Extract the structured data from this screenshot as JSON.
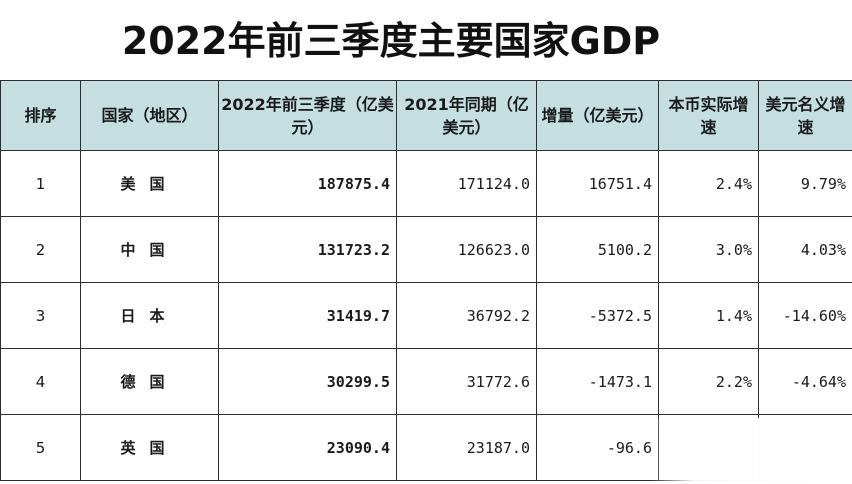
{
  "title": "2022年前三季度主要国家GDP",
  "headers": {
    "rank": "排序",
    "country": "国家（地区）",
    "gdp2022": "2022年前三季度（亿美元）",
    "gdp2021": "2021年同期（亿美元）",
    "increase": "增量（亿美元）",
    "local_growth": "本币实际增速",
    "usd_growth": "美元名义增速"
  },
  "rows": [
    {
      "rank": "1",
      "country": "美国",
      "gdp2022": "187875.4",
      "gdp2021": "171124.0",
      "increase": "16751.4",
      "local_growth": "2.4%",
      "usd_growth": "9.79%"
    },
    {
      "rank": "2",
      "country": "中国",
      "gdp2022": "131723.2",
      "gdp2021": "126623.0",
      "increase": "5100.2",
      "local_growth": "3.0%",
      "usd_growth": "4.03%"
    },
    {
      "rank": "3",
      "country": "日本",
      "gdp2022": "31419.7",
      "gdp2021": "36792.2",
      "increase": "-5372.5",
      "local_growth": "1.4%",
      "usd_growth": "-14.60%"
    },
    {
      "rank": "4",
      "country": "德国",
      "gdp2022": "30299.5",
      "gdp2021": "31772.6",
      "increase": "-1473.1",
      "local_growth": "2.2%",
      "usd_growth": "-4.64%"
    },
    {
      "rank": "5",
      "country": "英国",
      "gdp2022": "23090.4",
      "gdp2021": "23187.0",
      "increase": "-96.6",
      "local_growth": "",
      "usd_growth": ""
    }
  ],
  "colors": {
    "header_bg": "#c5dfe1",
    "negative": "#c0392b",
    "border": "#2d2d2d"
  }
}
